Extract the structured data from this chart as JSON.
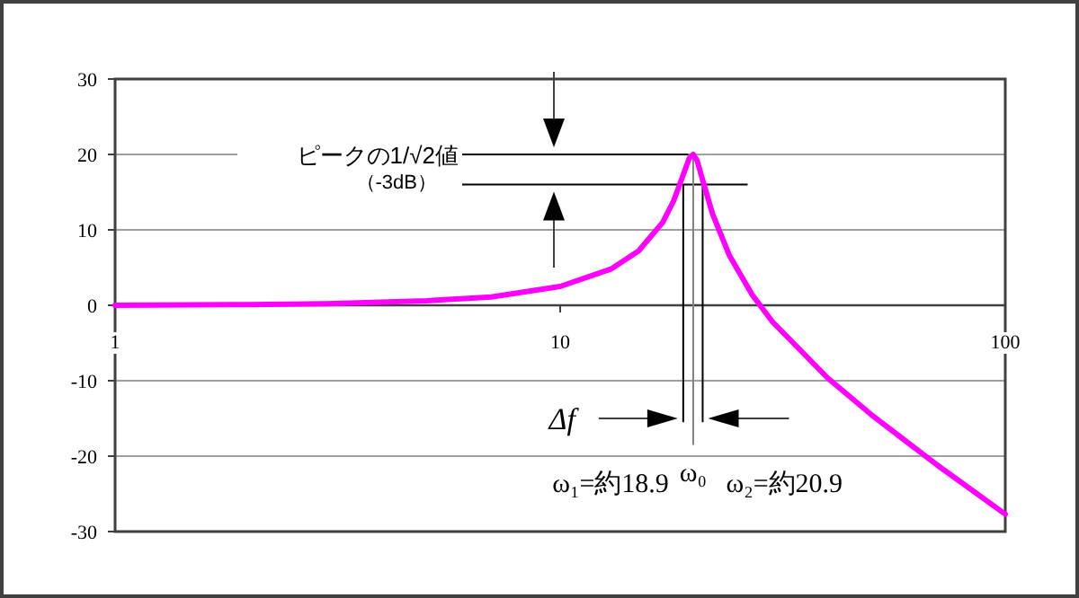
{
  "chart_data": {
    "type": "line",
    "x": [
      1,
      2,
      3,
      5,
      7,
      10,
      13,
      15,
      17,
      18,
      18.9,
      19.5,
      19.9,
      20.3,
      20.9,
      22,
      24,
      27,
      30,
      40,
      50,
      70,
      100
    ],
    "series": [
      {
        "color": "#ff00ff",
        "values": [
          0,
          0.1,
          0.2,
          0.6,
          1.1,
          2.5,
          4.8,
          7.2,
          11,
          13.9,
          17.3,
          19.5,
          20,
          19.2,
          16.6,
          12.1,
          6.6,
          1.4,
          -2.2,
          -9.7,
          -14.5,
          -21.1,
          -27.7
        ]
      }
    ],
    "log": "x",
    "xlim": [
      1,
      100
    ],
    "xticks": [
      1,
      10,
      100
    ],
    "ylim": [
      -30,
      30
    ],
    "yticks": [
      -30,
      -20,
      -10,
      0,
      10,
      20,
      30
    ],
    "grid": "y",
    "ref_lines": [
      {
        "axis": "y",
        "value": 20,
        "label": "ピークの1/√2値",
        "color": "#000000"
      },
      {
        "axis": "y",
        "value": 16,
        "label": "（-3dB）",
        "color": "#000000"
      },
      {
        "axis": "x",
        "value": 18.9,
        "label": "ω₁=約18.9",
        "color": "#000000"
      },
      {
        "axis": "x",
        "value": 19.9,
        "label": "ω₀",
        "color": "#808080"
      },
      {
        "axis": "x",
        "value": 20.9,
        "label": "ω₂=約20.9",
        "color": "#000000"
      }
    ],
    "annotations": [
      "Δf"
    ]
  }
}
